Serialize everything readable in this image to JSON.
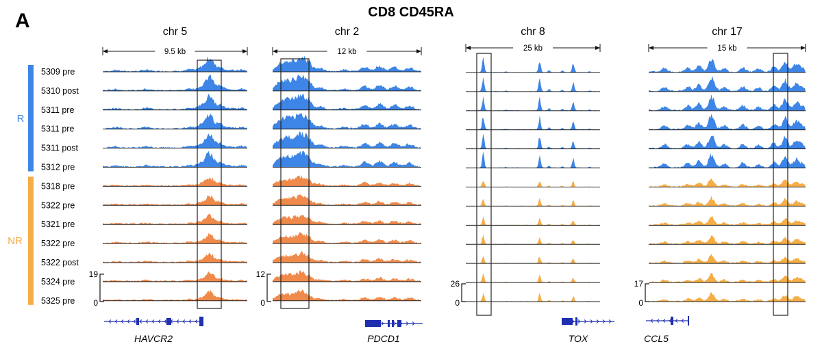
{
  "panel_letter": "A",
  "title": "CD8 CD45RA",
  "colors": {
    "responder": "#3d85e6",
    "nonresponder": "#f5ad47",
    "nr_track": "#f08a4b",
    "gene": "#1f2fb0",
    "box": "#222222"
  },
  "groups": [
    {
      "label": "R",
      "color": "#3d85e6"
    },
    {
      "label": "NR",
      "color": "#f5ad47"
    }
  ],
  "samples": [
    {
      "label": "5309 pre",
      "group": "R"
    },
    {
      "label": "5310 post",
      "group": "R"
    },
    {
      "label": "5311 pre",
      "group": "R"
    },
    {
      "label": "5311 pre",
      "group": "R"
    },
    {
      "label": "5311 post",
      "group": "R"
    },
    {
      "label": "5312 pre",
      "group": "R"
    },
    {
      "label": "5318 pre",
      "group": "NR"
    },
    {
      "label": "5322 pre",
      "group": "NR"
    },
    {
      "label": "5321 pre",
      "group": "NR"
    },
    {
      "label": "5322 pre",
      "group": "NR"
    },
    {
      "label": "5322 post",
      "group": "NR"
    },
    {
      "label": "5324  pre",
      "group": "NR"
    },
    {
      "label": "5325 pre",
      "group": "NR"
    }
  ],
  "loci": [
    {
      "chrom": "chr 5",
      "scale": "9.5 kb",
      "gene": "HAVCR2",
      "ymax": "19",
      "ymin": "0",
      "peaks": [
        [
          0.09,
          0.08
        ],
        [
          0.3,
          0.1
        ],
        [
          0.6,
          0.12
        ],
        [
          0.68,
          0.25
        ],
        [
          0.74,
          0.95
        ],
        [
          0.81,
          0.3
        ],
        [
          0.88,
          0.08
        ],
        [
          0.96,
          0.1
        ]
      ]
    },
    {
      "chrom": "chr 2",
      "scale": "12 kb",
      "gene": "PDCD1",
      "ymax": "12",
      "ymin": "0",
      "peaks": [
        [
          0.04,
          0.45
        ],
        [
          0.09,
          0.6
        ],
        [
          0.14,
          0.55
        ],
        [
          0.19,
          0.85
        ],
        [
          0.24,
          0.6
        ],
        [
          0.32,
          0.2
        ],
        [
          0.48,
          0.1
        ],
        [
          0.62,
          0.3
        ],
        [
          0.72,
          0.35
        ],
        [
          0.82,
          0.3
        ],
        [
          0.92,
          0.25
        ]
      ]
    },
    {
      "chrom": "chr 8",
      "scale": "25  kb",
      "gene": "TOX",
      "ymax": "26",
      "ymin": "0",
      "peaks": [
        [
          0.13,
          0.95
        ],
        [
          0.3,
          0.05
        ],
        [
          0.55,
          0.85
        ],
        [
          0.62,
          0.15
        ],
        [
          0.72,
          0.12
        ],
        [
          0.8,
          0.6
        ],
        [
          0.92,
          0.06
        ]
      ]
    },
    {
      "chrom": "chr 17",
      "scale": "15  kb",
      "gene": "CCL5",
      "ymax": "17",
      "ymin": "0",
      "peaks": [
        [
          0.1,
          0.25
        ],
        [
          0.25,
          0.3
        ],
        [
          0.32,
          0.45
        ],
        [
          0.4,
          0.95
        ],
        [
          0.48,
          0.25
        ],
        [
          0.6,
          0.3
        ],
        [
          0.7,
          0.2
        ],
        [
          0.8,
          0.35
        ],
        [
          0.87,
          0.75
        ],
        [
          0.94,
          0.55
        ],
        [
          0.98,
          0.25
        ]
      ]
    }
  ]
}
